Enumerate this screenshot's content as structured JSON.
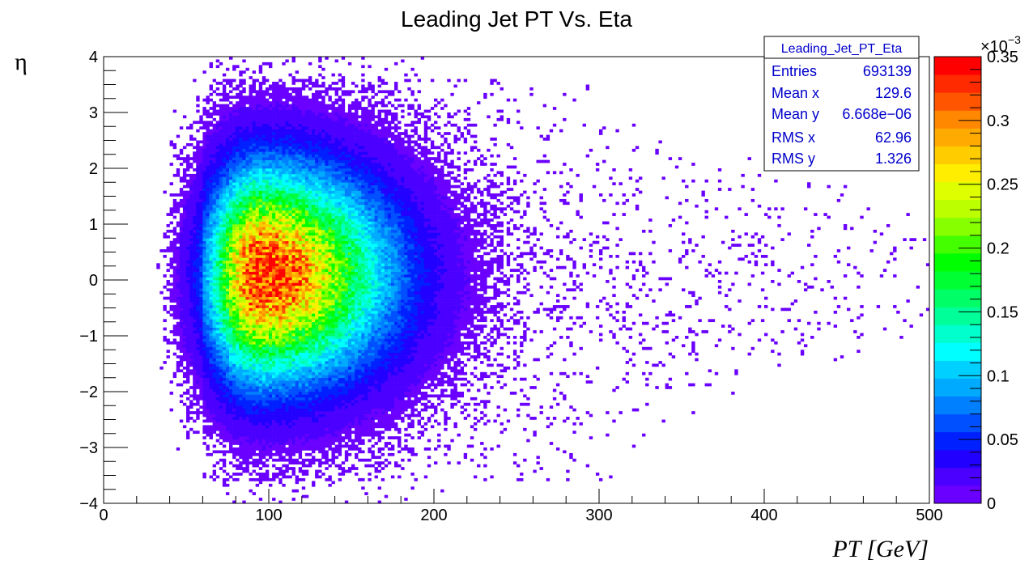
{
  "chart_data": {
    "type": "heatmap",
    "title": "Leading Jet PT Vs. Eta",
    "xlabel": "PT [GeV]",
    "ylabel": "η",
    "xlim": [
      0,
      500
    ],
    "ylim": [
      -4,
      4
    ],
    "x_ticks": [
      "0",
      "100",
      "200",
      "300",
      "400",
      "500"
    ],
    "y_ticks": [
      "4",
      "3",
      "2",
      "1",
      "0",
      "−1",
      "−2",
      "−3",
      "−4"
    ],
    "color_scale": {
      "min": 0,
      "max": 0.35,
      "exponent_label": "×10",
      "exponent_power": "−3",
      "ticks": [
        "0",
        "0.05",
        "0.1",
        "0.15",
        "0.2",
        "0.25",
        "0.3",
        "0.35"
      ],
      "palette": [
        "#6a00ff",
        "#4b00ff",
        "#2200ff",
        "#0020ff",
        "#0050ff",
        "#0080ff",
        "#00aaff",
        "#00d0ff",
        "#00ffff",
        "#00ffcc",
        "#00ff99",
        "#00ff66",
        "#00ff33",
        "#00ff00",
        "#44ff00",
        "#88ff00",
        "#bbff00",
        "#ddff00",
        "#ffee00",
        "#ffcc00",
        "#ffaa00",
        "#ff8800",
        "#ff5500",
        "#ff2a00",
        "#ff0000"
      ]
    },
    "distribution": {
      "peak_x": 95,
      "peak_y": 0.1,
      "peak_value": 0.33,
      "eta_rms": 1.326
    },
    "stats_box": {
      "name": "Leading_Jet_PT_Eta",
      "rows": [
        {
          "label": "Entries",
          "value": "693139"
        },
        {
          "label": "Mean x",
          "value": "129.6"
        },
        {
          "label": "Mean y",
          "value": "6.668e−06"
        },
        {
          "label": "RMS x",
          "value": "62.96"
        },
        {
          "label": "RMS y",
          "value": "1.326"
        }
      ]
    }
  }
}
